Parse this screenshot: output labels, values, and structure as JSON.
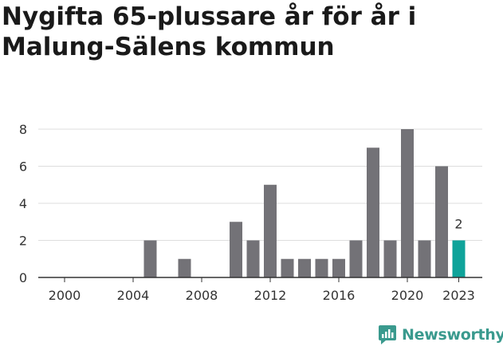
{
  "title_lines": [
    "Nygifta 65-plussare år för år i",
    "Malung-Sälens kommun"
  ],
  "brand": {
    "name": "Newsworthy",
    "color": "#3a9a8e"
  },
  "colors": {
    "bar": "#737277",
    "highlight": "#0fa39a",
    "grid": "#dddddd",
    "axis": "#333333",
    "text": "#333333"
  },
  "chart_data": {
    "type": "bar",
    "title": "Nygifta 65-plussare år för år i Malung-Sälens kommun",
    "categories": [
      2000,
      2001,
      2002,
      2003,
      2004,
      2005,
      2006,
      2007,
      2008,
      2009,
      2010,
      2011,
      2012,
      2013,
      2014,
      2015,
      2016,
      2017,
      2018,
      2019,
      2020,
      2021,
      2022,
      2023
    ],
    "values": [
      0,
      0,
      0,
      0,
      0,
      2,
      0,
      1,
      0,
      0,
      3,
      2,
      5,
      1,
      1,
      1,
      1,
      2,
      7,
      2,
      8,
      2,
      6,
      2
    ],
    "highlight_index": 23,
    "highlight_label": "2",
    "x_ticks": [
      "2000",
      "2004",
      "2008",
      "2012",
      "2016",
      "2020",
      "2023"
    ],
    "y_ticks": [
      "0",
      "2",
      "4",
      "6",
      "8"
    ],
    "ylim": [
      0,
      8
    ],
    "grid": true,
    "legend": "none"
  }
}
